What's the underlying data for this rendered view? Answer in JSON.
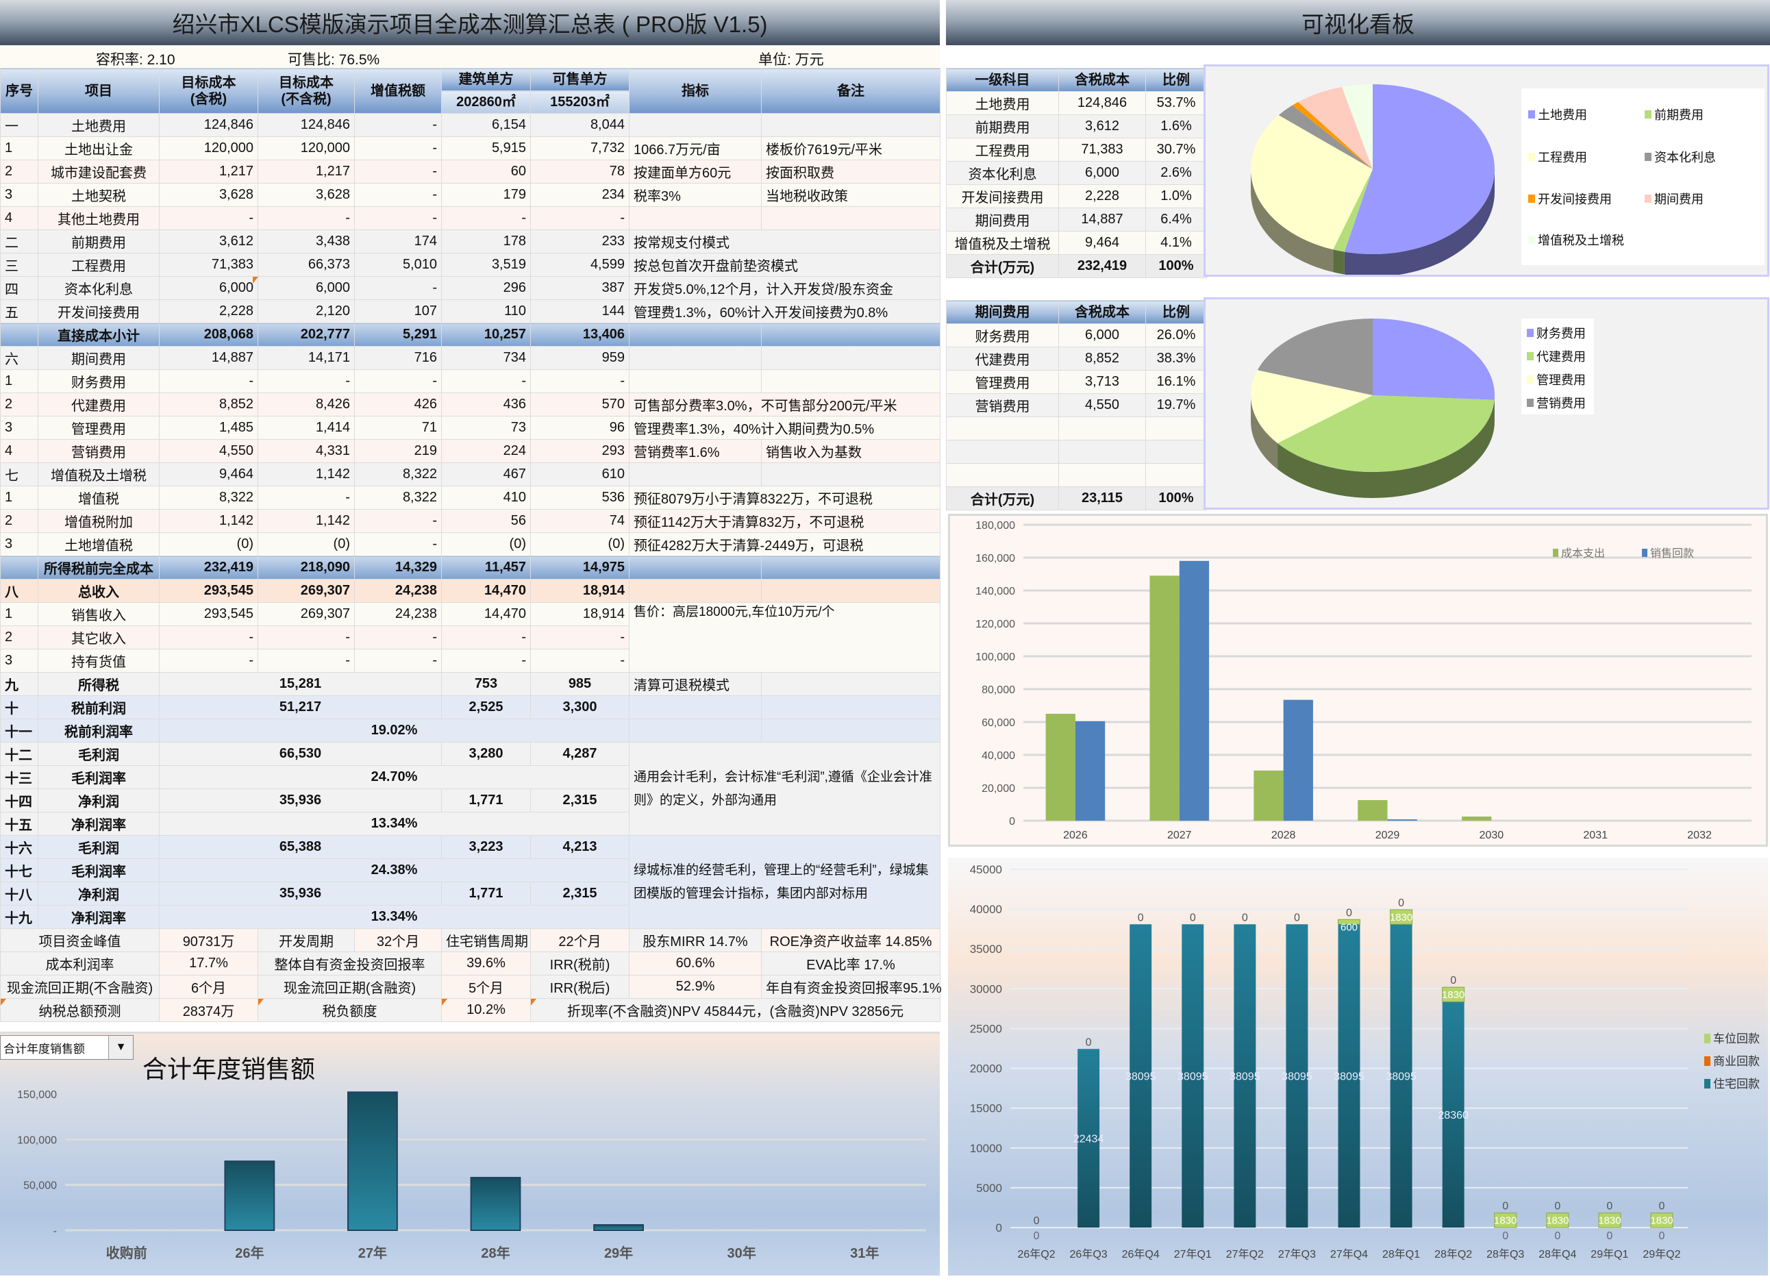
{
  "left_title": "绍兴市XLCS模版演示项目全成本测算汇总表 ( PRO版 V1.5)",
  "right_title": "可视化看板",
  "info": {
    "far": "容积率:   2.10",
    "saleable_ratio": "可售比:   76.5%",
    "unit": "单位:  万元"
  },
  "cost_table": {
    "headers": {
      "seq": "序号",
      "item": "项目",
      "tax": "目标成本\n(含税)",
      "notax": "目标成本\n(不含税)",
      "vat": "增值税额",
      "build": "建筑单方",
      "build_area": "202860㎡",
      "sale": "可售单方",
      "sale_area": "155203㎡",
      "ind": "指标",
      "note": "备注"
    },
    "rows": [
      {
        "kind": "gray",
        "seq": "一",
        "item": "土地费用",
        "tax": "124,846",
        "notax": "124,846",
        "vat": "-",
        "build": "6,154",
        "sale": "8,044",
        "ind": "",
        "note": ""
      },
      {
        "kind": "cream",
        "seq": "1",
        "item": "土地出让金",
        "tax": "120,000",
        "notax": "120,000",
        "vat": "-",
        "build": "5,915",
        "sale": "7,732",
        "ind": "1066.7万元/亩",
        "note": "楼板价7619元/平米"
      },
      {
        "kind": "pink",
        "seq": "2",
        "item": "城市建设配套费",
        "tax": "1,217",
        "notax": "1,217",
        "vat": "-",
        "build": "60",
        "sale": "78",
        "ind": "按建面单方60元",
        "note": "按面积取费"
      },
      {
        "kind": "cream",
        "seq": "3",
        "item": "土地契税",
        "tax": "3,628",
        "notax": "3,628",
        "vat": "-",
        "build": "179",
        "sale": "234",
        "ind": "税率3%",
        "note": "当地税收政策"
      },
      {
        "kind": "pink",
        "seq": "4",
        "item": "其他土地费用",
        "tax": "-",
        "notax": "-",
        "vat": "-",
        "build": "-",
        "sale": "-",
        "ind": "",
        "note": ""
      },
      {
        "kind": "gray",
        "seq": "二",
        "item": "前期费用",
        "tax": "3,612",
        "notax": "3,438",
        "vat": "174",
        "build": "178",
        "sale": "233",
        "ind": "按常规支付模式"
      },
      {
        "kind": "gray",
        "seq": "三",
        "item": "工程费用",
        "tax": "71,383",
        "notax": "66,373",
        "vat": "5,010",
        "build": "3,519",
        "sale": "4,599",
        "ind": "按总包首次开盘前垫资模式"
      },
      {
        "kind": "gray",
        "seq": "四",
        "item": "资本化利息",
        "tax": "6,000",
        "notax": "6,000",
        "vat": "-",
        "build": "296",
        "sale": "387",
        "ind": "开发贷5.0%,12个月，计入开发贷/股东资金",
        "flag": true
      },
      {
        "kind": "gray",
        "seq": "五",
        "item": "开发间接费用",
        "tax": "2,228",
        "notax": "2,120",
        "vat": "107",
        "build": "110",
        "sale": "144",
        "ind": "管理费1.3%，60%计入开发间接费为0.8%"
      },
      {
        "kind": "sub",
        "seq": "",
        "item": "直接成本小计",
        "tax": "208,068",
        "notax": "202,777",
        "vat": "5,291",
        "build": "10,257",
        "sale": "13,406",
        "ind": "",
        "note": ""
      },
      {
        "kind": "gray",
        "seq": "六",
        "item": "期间费用",
        "tax": "14,887",
        "notax": "14,171",
        "vat": "716",
        "build": "734",
        "sale": "959",
        "ind": "",
        "note": ""
      },
      {
        "kind": "cream",
        "seq": "1",
        "item": "财务费用",
        "tax": "-",
        "notax": "-",
        "vat": "-",
        "build": "-",
        "sale": "-",
        "ind": "",
        "note": ""
      },
      {
        "kind": "pink",
        "seq": "2",
        "item": "代建费用",
        "tax": "8,852",
        "notax": "8,426",
        "vat": "426",
        "build": "436",
        "sale": "570",
        "ind": "可售部分费率3.0%，不可售部分200元/平米"
      },
      {
        "kind": "cream",
        "seq": "3",
        "item": "管理费用",
        "tax": "1,485",
        "notax": "1,414",
        "vat": "71",
        "build": "73",
        "sale": "96",
        "ind": "管理费率1.3%，40%计入期间费为0.5%"
      },
      {
        "kind": "pink",
        "seq": "4",
        "item": "营销费用",
        "tax": "4,550",
        "notax": "4,331",
        "vat": "219",
        "build": "224",
        "sale": "293",
        "ind": "营销费率1.6%",
        "note": "销售收入为基数"
      },
      {
        "kind": "gray",
        "seq": "七",
        "item": "增值税及土增税",
        "tax": "9,464",
        "notax": "1,142",
        "vat": "8,322",
        "build": "467",
        "sale": "610",
        "ind": "",
        "note": ""
      },
      {
        "kind": "cream",
        "seq": "1",
        "item": "增值税",
        "tax": "8,322",
        "notax": "-",
        "vat": "8,322",
        "build": "410",
        "sale": "536",
        "ind": "预征8079万小于清算8322万，不可退税"
      },
      {
        "kind": "pink",
        "seq": "2",
        "item": "增值税附加",
        "tax": "1,142",
        "notax": "1,142",
        "vat": "-",
        "build": "56",
        "sale": "74",
        "ind": "预征1142万大于清算832万，不可退税"
      },
      {
        "kind": "cream",
        "seq": "3",
        "item": "土地增值税",
        "tax": "(0)",
        "notax": "(0)",
        "vat": "-",
        "build": "(0)",
        "sale": "(0)",
        "ind": "预征4282万大于清算-2449万，可退税"
      },
      {
        "kind": "sub",
        "seq": "",
        "item": "所得税前完全成本",
        "tax": "232,419",
        "notax": "218,090",
        "vat": "14,329",
        "build": "11,457",
        "sale": "14,975",
        "ind": "",
        "note": ""
      },
      {
        "kind": "income",
        "seq": "八",
        "item": "总收入",
        "tax": "293,545",
        "notax": "269,307",
        "vat": "24,238",
        "build": "14,470",
        "sale": "18,914",
        "ind": "",
        "note": ""
      },
      {
        "kind": "cream",
        "seq": "1",
        "item": "销售收入",
        "tax": "293,545",
        "notax": "269,307",
        "vat": "24,238",
        "build": "14,470",
        "sale": "18,914",
        "remark": "售价：高层18000元,车位10万元/个"
      },
      {
        "kind": "pink",
        "seq": "2",
        "item": "其它收入",
        "tax": "-",
        "notax": "-",
        "vat": "-",
        "build": "-",
        "sale": "-"
      },
      {
        "kind": "cream",
        "seq": "3",
        "item": "持有货值",
        "tax": "-",
        "notax": "-",
        "vat": "-",
        "build": "-",
        "sale": "-"
      }
    ],
    "profit_rows": [
      {
        "kind": "gray",
        "seq": "九",
        "item": "所得税",
        "value": "15,281",
        "build": "753",
        "sale": "985",
        "ind": "清算可退税模式",
        "note": ""
      },
      {
        "kind": "blue",
        "seq": "十",
        "item": "税前利润",
        "value": "51,217",
        "build": "2,525",
        "sale": "3,300",
        "ind": "",
        "note": ""
      },
      {
        "kind": "blue",
        "seq": "十一",
        "item": "税前利润率",
        "rate": "19.02%",
        "ind": "",
        "note": ""
      },
      {
        "kind": "gray",
        "seq": "十二",
        "item": "毛利润",
        "value": "66,530",
        "build": "3,280",
        "sale": "4,287",
        "remark": "通用会计毛利，会计标准“毛利润”,遵循《企业会计准则》的定义，外部沟通用"
      },
      {
        "kind": "gray",
        "seq": "十三",
        "item": "毛利润率",
        "rate": "24.70%"
      },
      {
        "kind": "gray",
        "seq": "十四",
        "item": "净利润",
        "value": "35,936",
        "build": "1,771",
        "sale": "2,315"
      },
      {
        "kind": "gray",
        "seq": "十五",
        "item": "净利润率",
        "rate": "13.34%"
      },
      {
        "kind": "blue",
        "seq": "十六",
        "item": "毛利润",
        "value": "65,388",
        "build": "3,223",
        "sale": "4,213",
        "remark": "绿城标准的经营毛利，管理上的“经营毛利”，绿城集团模版的管理会计指标，集团内部对标用"
      },
      {
        "kind": "blue",
        "seq": "十七",
        "item": "毛利润率",
        "rate": "24.38%"
      },
      {
        "kind": "blue",
        "seq": "十八",
        "item": "净利润",
        "value": "35,936",
        "build": "1,771",
        "sale": "2,315"
      },
      {
        "kind": "blue",
        "seq": "十九",
        "item": "净利润率",
        "rate": "13.34%"
      }
    ],
    "summary_rows": [
      [
        "项目资金峰值",
        "90731万",
        "开发周期",
        "32个月",
        "住宅销售周期",
        "22个月",
        "股东MIRR 14.7%",
        "ROE净资产收益率 14.85%"
      ],
      [
        "成本利润率",
        "17.7%",
        "整体自有资金投资回报率",
        "39.6%",
        "IRR(税前)",
        "60.6%",
        "EVA比率 17.%"
      ],
      [
        "现金流回正期(不含融资)",
        "6个月",
        "现金流回正期(含融资)",
        "5个月",
        "IRR(税后)",
        "52.9%",
        "年自有资金投资回报率95.1%"
      ],
      [
        "纳税总额预测",
        "28374万",
        "税负额度",
        "10.2%",
        "折现率(不含融资)NPV 45844元，(含融资)NPV 32856元"
      ]
    ]
  },
  "level1_table": {
    "headers": [
      "一级科目",
      "含税成本",
      "比例"
    ],
    "rows": [
      [
        "土地费用",
        "124,846",
        "53.7%"
      ],
      [
        "前期费用",
        "3,612",
        "1.6%"
      ],
      [
        "工程费用",
        "71,383",
        "30.7%"
      ],
      [
        "资本化利息",
        "6,000",
        "2.6%"
      ],
      [
        "开发间接费用",
        "2,228",
        "1.0%"
      ],
      [
        "期间费用",
        "14,887",
        "6.4%"
      ],
      [
        "增值税及土增税",
        "9,464",
        "4.1%"
      ]
    ],
    "total": [
      "合计(万元)",
      "232,419",
      "100%"
    ]
  },
  "period_table": {
    "headers": [
      "期间费用",
      "含税成本",
      "比例"
    ],
    "rows": [
      [
        "财务费用",
        "6,000",
        "26.0%"
      ],
      [
        "代建费用",
        "8,852",
        "38.3%"
      ],
      [
        "管理费用",
        "3,713",
        "16.1%"
      ],
      [
        "营销费用",
        "4,550",
        "19.7%"
      ],
      [
        "",
        "",
        ""
      ],
      [
        "",
        "",
        ""
      ],
      [
        "",
        "",
        ""
      ]
    ],
    "total": [
      "合计(万元)",
      "23,115",
      "100%"
    ]
  },
  "chart_data": [
    {
      "type": "pie",
      "labels": [
        "土地费用",
        "前期费用",
        "工程费用",
        "资本化利息",
        "开发间接费用",
        "期间费用",
        "增值税及土增税"
      ],
      "values": [
        124846,
        3612,
        71383,
        6000,
        2228,
        14887,
        9464
      ],
      "colors": [
        "#9999FF",
        "#B3DE7A",
        "#FFFFCC",
        "#969696",
        "#FF9900",
        "#FFCCC0",
        "#F2FFE8"
      ],
      "legend": "right"
    },
    {
      "type": "pie",
      "labels": [
        "财务费用",
        "代建费用",
        "管理费用",
        "营销费用"
      ],
      "values": [
        6000,
        8852,
        3713,
        4550
      ],
      "colors": [
        "#9999FF",
        "#B3DE7A",
        "#FFFFCC",
        "#969696"
      ],
      "legend": "right"
    },
    {
      "type": "bar",
      "categories": [
        "2026",
        "2027",
        "2028",
        "2029",
        "2030",
        "2031",
        "2032"
      ],
      "series": [
        {
          "name": "成本支出",
          "values": [
            65000,
            149000,
            30500,
            12500,
            2500,
            0,
            0
          ],
          "color": "#9BBB59"
        },
        {
          "name": "销售回款",
          "values": [
            60500,
            158000,
            73500,
            800,
            0,
            0,
            0
          ],
          "color": "#4F81BD"
        }
      ],
      "ylim": [
        0,
        180000
      ],
      "yticks": [
        "0",
        "20,000",
        "40,000",
        "60,000",
        "80,000",
        "100,000",
        "120,000",
        "140,000",
        "160,000",
        "180,000"
      ],
      "grid": true,
      "legend": "top-right"
    },
    {
      "type": "bar",
      "stacked": true,
      "categories": [
        "26年Q2",
        "26年Q3",
        "26年Q4",
        "27年Q1",
        "27年Q2",
        "27年Q3",
        "27年Q4",
        "28年Q1",
        "28年Q2",
        "28年Q3",
        "28年Q4",
        "29年Q1",
        "29年Q2"
      ],
      "series": [
        {
          "name": "住宅回款",
          "values": [
            0,
            22434,
            38095,
            38095,
            38095,
            38095,
            38095,
            38095,
            28360,
            0,
            0,
            0,
            0
          ],
          "color": "#1F7A8C"
        },
        {
          "name": "商业回款",
          "values": [
            0,
            0,
            0,
            0,
            0,
            0,
            0,
            0,
            0,
            0,
            0,
            0,
            0
          ],
          "color": "#E46C0A"
        },
        {
          "name": "车位回款",
          "values": [
            0,
            0,
            0,
            0,
            0,
            0,
            600,
            1830,
            1830,
            1830,
            1830,
            1830,
            1830
          ],
          "color": "#B5D56A"
        }
      ],
      "ylim": [
        0,
        45000
      ],
      "yticks": [
        "0",
        "5000",
        "10000",
        "15000",
        "20000",
        "25000",
        "30000",
        "35000",
        "40000",
        "45000"
      ],
      "grid": true,
      "legend": "right"
    },
    {
      "type": "bar",
      "title": "合计年度销售额",
      "categories": [
        "收购前",
        "26年",
        "27年",
        "28年",
        "29年",
        "30年",
        "31年"
      ],
      "values": [
        0,
        76000,
        152000,
        58000,
        6000,
        0,
        0
      ],
      "ylim": [
        0,
        150000
      ],
      "yticks": [
        "-",
        "50,000",
        "100,000",
        "150,000"
      ],
      "grid": true,
      "color": "#1F7A8C"
    }
  ],
  "sales_dropdown": {
    "value": "合计年度销售额",
    "arrow": "▼"
  }
}
